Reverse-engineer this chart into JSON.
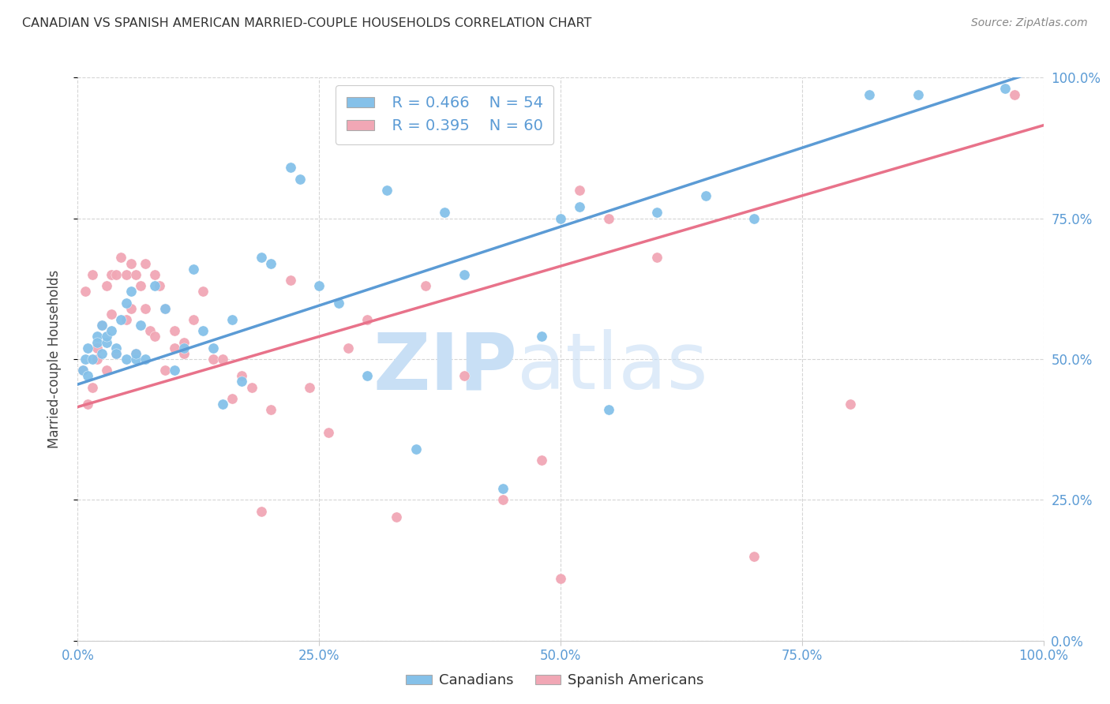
{
  "title": "CANADIAN VS SPANISH AMERICAN MARRIED-COUPLE HOUSEHOLDS CORRELATION CHART",
  "source": "Source: ZipAtlas.com",
  "ylabel": "Married-couple Households",
  "xlabel": "",
  "xlim": [
    0,
    1
  ],
  "ylim": [
    0,
    1
  ],
  "xticks": [
    0.0,
    0.25,
    0.5,
    0.75,
    1.0
  ],
  "yticks": [
    0.0,
    0.25,
    0.5,
    0.75,
    1.0
  ],
  "xticklabels": [
    "0.0%",
    "25.0%",
    "50.0%",
    "75.0%",
    "100.0%"
  ],
  "yticklabels": [
    "0.0%",
    "25.0%",
    "50.0%",
    "75.0%",
    "100.0%"
  ],
  "blue_R": "R = 0.466",
  "blue_N": "N = 54",
  "pink_R": "R = 0.395",
  "pink_N": "N = 60",
  "blue_color": "#85c1e9",
  "pink_color": "#f1a7b5",
  "blue_line_color": "#5b9bd5",
  "pink_line_color": "#e8728a",
  "legend_canadians": "Canadians",
  "legend_spanish": "Spanish Americans",
  "blue_scatter_x": [
    0.005,
    0.008,
    0.01,
    0.01,
    0.015,
    0.02,
    0.02,
    0.025,
    0.025,
    0.03,
    0.03,
    0.035,
    0.04,
    0.04,
    0.045,
    0.05,
    0.05,
    0.055,
    0.06,
    0.06,
    0.065,
    0.07,
    0.08,
    0.09,
    0.1,
    0.11,
    0.12,
    0.13,
    0.14,
    0.15,
    0.16,
    0.17,
    0.19,
    0.2,
    0.22,
    0.23,
    0.25,
    0.27,
    0.3,
    0.32,
    0.35,
    0.38,
    0.4,
    0.44,
    0.48,
    0.5,
    0.52,
    0.55,
    0.6,
    0.65,
    0.7,
    0.82,
    0.87,
    0.96
  ],
  "blue_scatter_y": [
    0.48,
    0.5,
    0.52,
    0.47,
    0.5,
    0.54,
    0.53,
    0.56,
    0.51,
    0.53,
    0.54,
    0.55,
    0.52,
    0.51,
    0.57,
    0.6,
    0.5,
    0.62,
    0.5,
    0.51,
    0.56,
    0.5,
    0.63,
    0.59,
    0.48,
    0.52,
    0.66,
    0.55,
    0.52,
    0.42,
    0.57,
    0.46,
    0.68,
    0.67,
    0.84,
    0.82,
    0.63,
    0.6,
    0.47,
    0.8,
    0.34,
    0.76,
    0.65,
    0.27,
    0.54,
    0.75,
    0.77,
    0.41,
    0.76,
    0.79,
    0.75,
    0.97,
    0.97,
    0.98
  ],
  "pink_scatter_x": [
    0.005,
    0.008,
    0.01,
    0.015,
    0.015,
    0.02,
    0.02,
    0.025,
    0.03,
    0.03,
    0.035,
    0.035,
    0.04,
    0.04,
    0.045,
    0.05,
    0.05,
    0.055,
    0.055,
    0.06,
    0.06,
    0.065,
    0.07,
    0.07,
    0.075,
    0.08,
    0.08,
    0.085,
    0.09,
    0.09,
    0.1,
    0.1,
    0.11,
    0.11,
    0.12,
    0.13,
    0.14,
    0.15,
    0.16,
    0.17,
    0.18,
    0.19,
    0.2,
    0.22,
    0.24,
    0.26,
    0.28,
    0.3,
    0.33,
    0.36,
    0.4,
    0.44,
    0.48,
    0.5,
    0.52,
    0.55,
    0.6,
    0.7,
    0.8,
    0.97
  ],
  "pink_scatter_y": [
    0.48,
    0.62,
    0.42,
    0.65,
    0.45,
    0.5,
    0.52,
    0.56,
    0.63,
    0.48,
    0.65,
    0.58,
    0.65,
    0.51,
    0.68,
    0.65,
    0.57,
    0.67,
    0.59,
    0.65,
    0.51,
    0.63,
    0.67,
    0.59,
    0.55,
    0.65,
    0.54,
    0.63,
    0.59,
    0.48,
    0.55,
    0.52,
    0.53,
    0.51,
    0.57,
    0.62,
    0.5,
    0.5,
    0.43,
    0.47,
    0.45,
    0.23,
    0.41,
    0.64,
    0.45,
    0.37,
    0.52,
    0.57,
    0.22,
    0.63,
    0.47,
    0.25,
    0.32,
    0.11,
    0.8,
    0.75,
    0.68,
    0.15,
    0.42,
    0.97
  ],
  "background_color": "#ffffff",
  "grid_color": "#d5d5d5",
  "tick_color": "#5b9bd5",
  "watermark_zip_color": "#c8dff5",
  "watermark_atlas_color": "#c8dff5"
}
